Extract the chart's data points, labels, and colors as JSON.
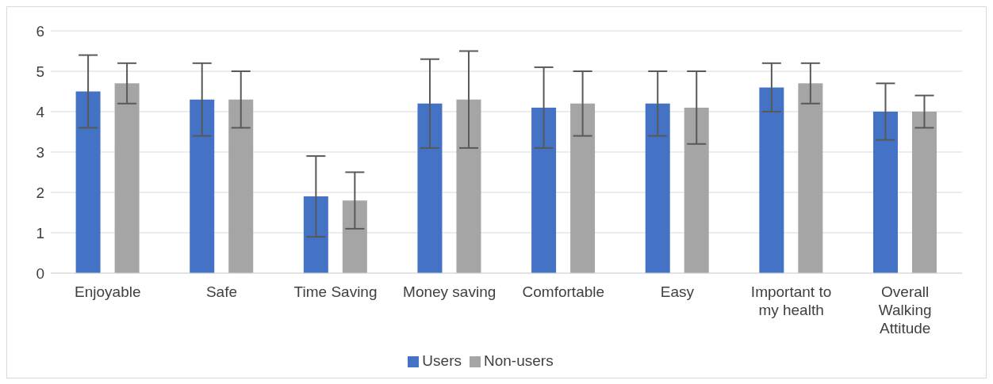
{
  "chart_data": {
    "type": "bar",
    "categories": [
      "Enjoyable",
      "Safe",
      "Time Saving",
      "Money saving",
      "Comfortable",
      "Easy",
      "Important to my health",
      "Overall Walking Attitude"
    ],
    "series": [
      {
        "name": "Users",
        "color": "#4472c4",
        "values": [
          4.5,
          4.3,
          1.9,
          4.2,
          4.1,
          4.2,
          4.6,
          4.0
        ],
        "errors": [
          [
            3.6,
            5.4
          ],
          [
            3.4,
            5.2
          ],
          [
            0.9,
            2.9
          ],
          [
            3.1,
            5.3
          ],
          [
            3.1,
            5.1
          ],
          [
            3.4,
            5.0
          ],
          [
            4.0,
            5.2
          ],
          [
            3.3,
            4.7
          ]
        ]
      },
      {
        "name": "Non-users",
        "color": "#a5a5a5",
        "values": [
          4.7,
          4.3,
          1.8,
          4.3,
          4.2,
          4.1,
          4.7,
          4.0
        ],
        "errors": [
          [
            4.2,
            5.2
          ],
          [
            3.6,
            5.0
          ],
          [
            1.1,
            2.5
          ],
          [
            3.1,
            5.5
          ],
          [
            3.4,
            5.0
          ],
          [
            3.2,
            5.0
          ],
          [
            4.2,
            5.2
          ],
          [
            3.6,
            4.4
          ]
        ]
      }
    ],
    "ylim": [
      0,
      6
    ],
    "yticks": [
      0,
      1,
      2,
      3,
      4,
      5,
      6
    ],
    "grid": "y",
    "legend": "bottom"
  }
}
